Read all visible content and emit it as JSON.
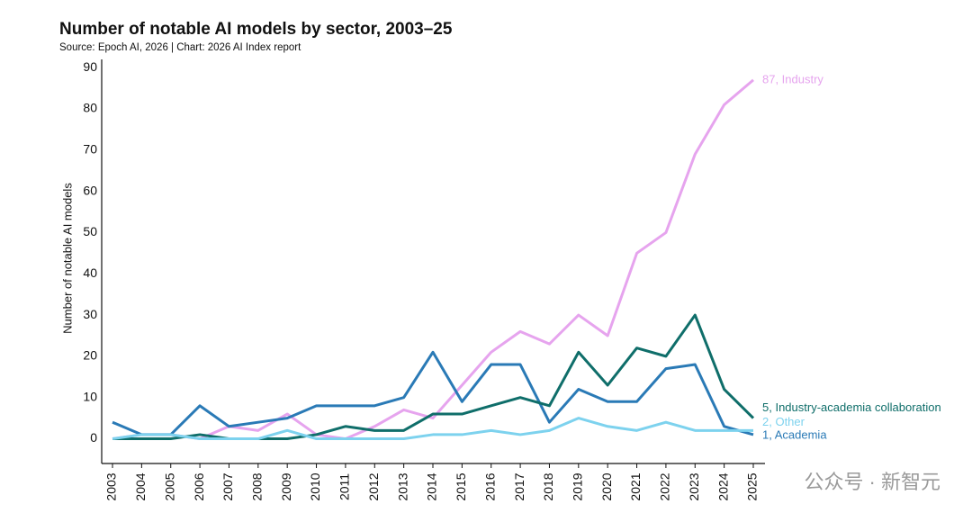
{
  "chart_data": {
    "type": "line",
    "title": "Number of notable AI models by sector, 2003–25",
    "subtitle": "Source: Epoch AI, 2026 | Chart: 2026 AI Index report",
    "y_label": "Number of notable AI models",
    "watermark": "公众号 · 新智元",
    "x": [
      2003,
      2004,
      2005,
      2006,
      2007,
      2008,
      2009,
      2010,
      2011,
      2012,
      2013,
      2014,
      2015,
      2016,
      2017,
      2018,
      2019,
      2020,
      2021,
      2022,
      2023,
      2024,
      2025
    ],
    "xlim": [
      2003,
      2025
    ],
    "xticks": [
      2003,
      2004,
      2005,
      2006,
      2007,
      2008,
      2009,
      2010,
      2011,
      2012,
      2013,
      2014,
      2015,
      2016,
      2017,
      2018,
      2019,
      2020,
      2021,
      2022,
      2023,
      2024,
      2025
    ],
    "ylim": [
      -6,
      92
    ],
    "yticks": [
      0,
      10,
      20,
      30,
      40,
      50,
      60,
      70,
      80,
      90
    ],
    "grid": false,
    "series": [
      {
        "label": "87, Industry",
        "color": "#e6a4ee",
        "values": [
          0,
          1,
          1,
          0,
          3,
          2,
          6,
          1,
          0,
          3,
          7,
          5,
          13,
          21,
          26,
          23,
          30,
          25,
          45,
          50,
          69,
          81,
          87
        ]
      },
      {
        "label": "1, Academia",
        "color": "#2a7ab6",
        "values": [
          4,
          1,
          1,
          8,
          3,
          4,
          5,
          8,
          8,
          8,
          10,
          21,
          9,
          18,
          18,
          4,
          12,
          9,
          9,
          17,
          18,
          3,
          1
        ]
      },
      {
        "label": "5, Industry-academia collaboration",
        "color": "#0f6e6a",
        "values": [
          0,
          0,
          0,
          1,
          0,
          0,
          0,
          1,
          3,
          2,
          2,
          6,
          6,
          8,
          10,
          8,
          21,
          13,
          22,
          20,
          30,
          12,
          5
        ]
      },
      {
        "label": "2, Other",
        "color": "#7dd2ee",
        "values": [
          0,
          1,
          1,
          0,
          0,
          0,
          2,
          0,
          0,
          0,
          0,
          1,
          1,
          2,
          1,
          2,
          5,
          3,
          2,
          4,
          2,
          2,
          2
        ]
      }
    ]
  }
}
